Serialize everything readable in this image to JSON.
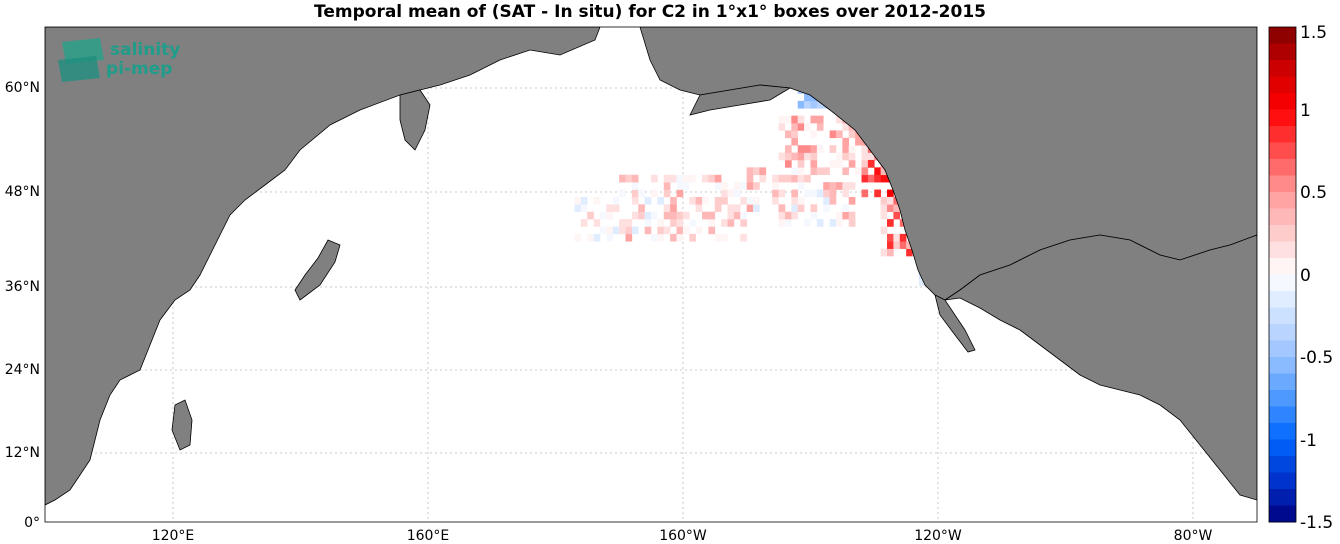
{
  "title": "Temporal mean of (SAT - In situ) for C2 in 1°x1° boxes over 2012-2015",
  "logo": {
    "line1": "salinity",
    "line2": "pi-mep",
    "icon": "salinity-pimep-logo-icon"
  },
  "colors": {
    "land": "#808080",
    "ocean": "#ffffff",
    "grid": "#c8c8c8",
    "coast": "#000000",
    "logo": "#1f9d8a"
  },
  "map_data": {
    "lon_range": [
      100,
      290
    ],
    "lat_range": [
      0,
      67
    ],
    "lat_ticks": [
      {
        "value": 0,
        "label": "0°"
      },
      {
        "value": 12,
        "label": "12°N"
      },
      {
        "value": 24,
        "label": "24°N"
      },
      {
        "value": 36,
        "label": "36°N"
      },
      {
        "value": 48,
        "label": "48°N"
      },
      {
        "value": 60,
        "label": "60°N"
      }
    ],
    "lon_ticks": [
      {
        "value": 120,
        "label": "120°E"
      },
      {
        "value": 160,
        "label": "160°E"
      },
      {
        "value": 200,
        "label": "160°W"
      },
      {
        "value": 240,
        "label": "120°W"
      },
      {
        "value": 280,
        "label": "80°W"
      }
    ],
    "colorbar": {
      "range": [
        -1.5,
        1.5
      ],
      "ticks": [
        "-1.5",
        "-1",
        "-0.5",
        "0",
        "0.5",
        "1",
        "1.5"
      ],
      "steps": 30,
      "colors_neg": [
        "#000080",
        "#0033cc",
        "#0066ff",
        "#4d99ff",
        "#99c2ff",
        "#cce0ff",
        "#ffffff"
      ],
      "colors_pos": [
        "#ffffff",
        "#ffcccc",
        "#ff9999",
        "#ff4d4d",
        "#ff0000",
        "#cc0000",
        "#800000"
      ]
    },
    "clusters": [
      {
        "lon": [
          183,
          190
        ],
        "lat": [
          38,
          44
        ],
        "mean": 0.05,
        "spread": 0.25
      },
      {
        "lon": [
          190,
          210
        ],
        "lat": [
          38,
          47
        ],
        "mean": 0.15,
        "spread": 0.3
      },
      {
        "lon": [
          210,
          228
        ],
        "lat": [
          40,
          48
        ],
        "mean": 0.15,
        "spread": 0.3
      },
      {
        "lon": [
          215,
          232
        ],
        "lat": [
          48,
          55
        ],
        "mean": 0.3,
        "spread": 0.3
      },
      {
        "lon": [
          228,
          236
        ],
        "lat": [
          44,
          53
        ],
        "mean": 0.7,
        "spread": 0.35
      },
      {
        "lon": [
          231,
          238
        ],
        "lat": [
          36,
          44
        ],
        "mean": 0.5,
        "spread": 0.4
      },
      {
        "lon": [
          218,
          224
        ],
        "lat": [
          56,
          61
        ],
        "mean": -0.4,
        "spread": 0.2
      },
      {
        "lon": [
          235,
          241
        ],
        "lat": [
          32,
          36
        ],
        "mean": -0.2,
        "spread": 0.15
      }
    ]
  }
}
